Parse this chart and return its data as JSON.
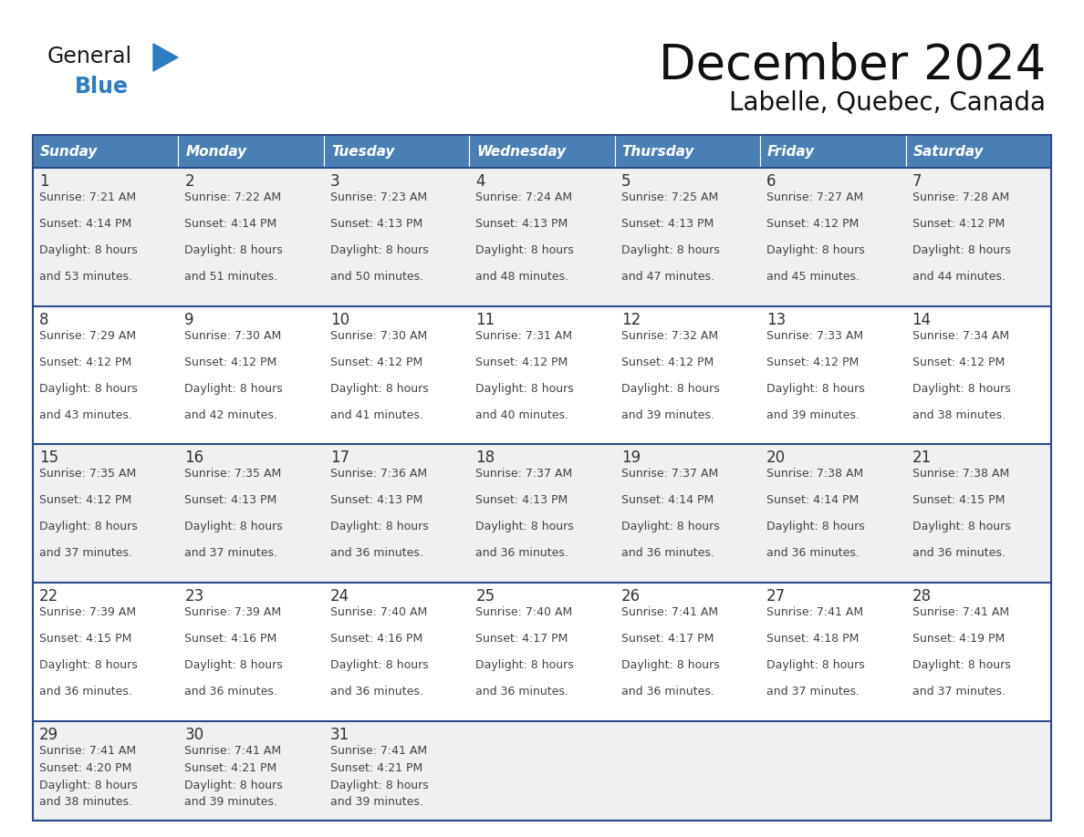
{
  "title": "December 2024",
  "subtitle": "Labelle, Quebec, Canada",
  "days_of_week": [
    "Sunday",
    "Monday",
    "Tuesday",
    "Wednesday",
    "Thursday",
    "Friday",
    "Saturday"
  ],
  "header_bg": "#4A7FB5",
  "header_text": "#FFFFFF",
  "cell_bg_odd": "#F0F0F0",
  "cell_bg_even": "#FFFFFF",
  "cell_text": "#444444",
  "day_num_color": "#333333",
  "row_border_color": "#2B4C8C",
  "outer_border_color": "#2B4C8C",
  "title_color": "#111111",
  "subtitle_color": "#111111",
  "general_color": "#1a1a1a",
  "blue_color": "#2D7DC3",
  "calendar_data": [
    [
      {
        "day": 1,
        "sunrise": "7:21 AM",
        "sunset": "4:14 PM",
        "daylight": "8 hours and 53 minutes."
      },
      {
        "day": 2,
        "sunrise": "7:22 AM",
        "sunset": "4:14 PM",
        "daylight": "8 hours and 51 minutes."
      },
      {
        "day": 3,
        "sunrise": "7:23 AM",
        "sunset": "4:13 PM",
        "daylight": "8 hours and 50 minutes."
      },
      {
        "day": 4,
        "sunrise": "7:24 AM",
        "sunset": "4:13 PM",
        "daylight": "8 hours and 48 minutes."
      },
      {
        "day": 5,
        "sunrise": "7:25 AM",
        "sunset": "4:13 PM",
        "daylight": "8 hours and 47 minutes."
      },
      {
        "day": 6,
        "sunrise": "7:27 AM",
        "sunset": "4:12 PM",
        "daylight": "8 hours and 45 minutes."
      },
      {
        "day": 7,
        "sunrise": "7:28 AM",
        "sunset": "4:12 PM",
        "daylight": "8 hours and 44 minutes."
      }
    ],
    [
      {
        "day": 8,
        "sunrise": "7:29 AM",
        "sunset": "4:12 PM",
        "daylight": "8 hours and 43 minutes."
      },
      {
        "day": 9,
        "sunrise": "7:30 AM",
        "sunset": "4:12 PM",
        "daylight": "8 hours and 42 minutes."
      },
      {
        "day": 10,
        "sunrise": "7:30 AM",
        "sunset": "4:12 PM",
        "daylight": "8 hours and 41 minutes."
      },
      {
        "day": 11,
        "sunrise": "7:31 AM",
        "sunset": "4:12 PM",
        "daylight": "8 hours and 40 minutes."
      },
      {
        "day": 12,
        "sunrise": "7:32 AM",
        "sunset": "4:12 PM",
        "daylight": "8 hours and 39 minutes."
      },
      {
        "day": 13,
        "sunrise": "7:33 AM",
        "sunset": "4:12 PM",
        "daylight": "8 hours and 39 minutes."
      },
      {
        "day": 14,
        "sunrise": "7:34 AM",
        "sunset": "4:12 PM",
        "daylight": "8 hours and 38 minutes."
      }
    ],
    [
      {
        "day": 15,
        "sunrise": "7:35 AM",
        "sunset": "4:12 PM",
        "daylight": "8 hours and 37 minutes."
      },
      {
        "day": 16,
        "sunrise": "7:35 AM",
        "sunset": "4:13 PM",
        "daylight": "8 hours and 37 minutes."
      },
      {
        "day": 17,
        "sunrise": "7:36 AM",
        "sunset": "4:13 PM",
        "daylight": "8 hours and 36 minutes."
      },
      {
        "day": 18,
        "sunrise": "7:37 AM",
        "sunset": "4:13 PM",
        "daylight": "8 hours and 36 minutes."
      },
      {
        "day": 19,
        "sunrise": "7:37 AM",
        "sunset": "4:14 PM",
        "daylight": "8 hours and 36 minutes."
      },
      {
        "day": 20,
        "sunrise": "7:38 AM",
        "sunset": "4:14 PM",
        "daylight": "8 hours and 36 minutes."
      },
      {
        "day": 21,
        "sunrise": "7:38 AM",
        "sunset": "4:15 PM",
        "daylight": "8 hours and 36 minutes."
      }
    ],
    [
      {
        "day": 22,
        "sunrise": "7:39 AM",
        "sunset": "4:15 PM",
        "daylight": "8 hours and 36 minutes."
      },
      {
        "day": 23,
        "sunrise": "7:39 AM",
        "sunset": "4:16 PM",
        "daylight": "8 hours and 36 minutes."
      },
      {
        "day": 24,
        "sunrise": "7:40 AM",
        "sunset": "4:16 PM",
        "daylight": "8 hours and 36 minutes."
      },
      {
        "day": 25,
        "sunrise": "7:40 AM",
        "sunset": "4:17 PM",
        "daylight": "8 hours and 36 minutes."
      },
      {
        "day": 26,
        "sunrise": "7:41 AM",
        "sunset": "4:17 PM",
        "daylight": "8 hours and 36 minutes."
      },
      {
        "day": 27,
        "sunrise": "7:41 AM",
        "sunset": "4:18 PM",
        "daylight": "8 hours and 37 minutes."
      },
      {
        "day": 28,
        "sunrise": "7:41 AM",
        "sunset": "4:19 PM",
        "daylight": "8 hours and 37 minutes."
      }
    ],
    [
      {
        "day": 29,
        "sunrise": "7:41 AM",
        "sunset": "4:20 PM",
        "daylight": "8 hours and 38 minutes."
      },
      {
        "day": 30,
        "sunrise": "7:41 AM",
        "sunset": "4:21 PM",
        "daylight": "8 hours and 39 minutes."
      },
      {
        "day": 31,
        "sunrise": "7:41 AM",
        "sunset": "4:21 PM",
        "daylight": "8 hours and 39 minutes."
      },
      null,
      null,
      null,
      null
    ]
  ]
}
